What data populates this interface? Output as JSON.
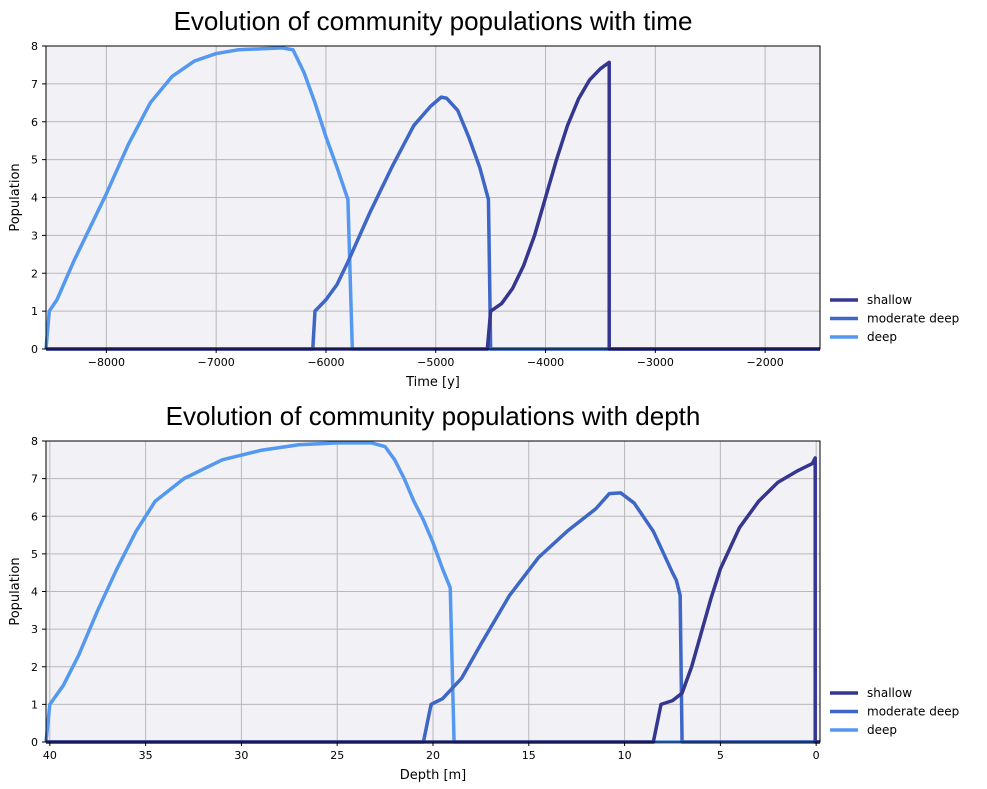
{
  "chart_data": [
    {
      "type": "line",
      "title": "Evolution of community populations with time",
      "xlabel": "Time [y]",
      "ylabel": "Population",
      "xlim": [
        -8550,
        -1500
      ],
      "ylim": [
        0,
        8
      ],
      "xticks": [
        -8000,
        -7000,
        -6000,
        -5000,
        -4000,
        -3000,
        -2000
      ],
      "xtick_labels": [
        "−8000",
        "−7000",
        "−6000",
        "−5000",
        "−4000",
        "−3000",
        "−2000"
      ],
      "yticks": [
        0,
        1,
        2,
        3,
        4,
        5,
        6,
        7,
        8
      ],
      "ytick_labels": [
        "0",
        "1",
        "2",
        "3",
        "4",
        "5",
        "6",
        "7",
        "8"
      ],
      "grid": true,
      "legend": "right",
      "series": [
        {
          "name": "shallow",
          "color": "#35368f",
          "points": [
            [
              -8550,
              0
            ],
            [
              -4530,
              0
            ],
            [
              -4500,
              1
            ],
            [
              -4400,
              1.2
            ],
            [
              -4300,
              1.6
            ],
            [
              -4200,
              2.2
            ],
            [
              -4100,
              3.0
            ],
            [
              -4000,
              4.0
            ],
            [
              -3900,
              5.0
            ],
            [
              -3800,
              5.9
            ],
            [
              -3700,
              6.6
            ],
            [
              -3600,
              7.1
            ],
            [
              -3500,
              7.4
            ],
            [
              -3420,
              7.57
            ],
            [
              -3420,
              0
            ],
            [
              -1500,
              0
            ]
          ]
        },
        {
          "name": "moderate deep",
          "color": "#3e66c6",
          "points": [
            [
              -8550,
              0
            ],
            [
              -6120,
              0
            ],
            [
              -6100,
              1
            ],
            [
              -6000,
              1.3
            ],
            [
              -5900,
              1.7
            ],
            [
              -5800,
              2.3
            ],
            [
              -5600,
              3.6
            ],
            [
              -5400,
              4.8
            ],
            [
              -5200,
              5.9
            ],
            [
              -5050,
              6.4
            ],
            [
              -4950,
              6.65
            ],
            [
              -4900,
              6.62
            ],
            [
              -4800,
              6.3
            ],
            [
              -4700,
              5.6
            ],
            [
              -4600,
              4.8
            ],
            [
              -4520,
              3.95
            ],
            [
              -4500,
              0
            ],
            [
              -1500,
              0
            ]
          ]
        },
        {
          "name": "deep",
          "color": "#5598ef",
          "points": [
            [
              -8550,
              0
            ],
            [
              -8520,
              1
            ],
            [
              -8450,
              1.3
            ],
            [
              -8300,
              2.3
            ],
            [
              -8100,
              3.5
            ],
            [
              -8000,
              4.1
            ],
            [
              -7800,
              5.4
            ],
            [
              -7600,
              6.5
            ],
            [
              -7400,
              7.2
            ],
            [
              -7200,
              7.6
            ],
            [
              -7000,
              7.8
            ],
            [
              -6800,
              7.9
            ],
            [
              -6400,
              7.95
            ],
            [
              -6300,
              7.9
            ],
            [
              -6200,
              7.3
            ],
            [
              -6100,
              6.5
            ],
            [
              -6000,
              5.6
            ],
            [
              -5900,
              4.8
            ],
            [
              -5800,
              3.95
            ],
            [
              -5760,
              0
            ],
            [
              -1500,
              0
            ]
          ]
        }
      ]
    },
    {
      "type": "line",
      "title": "Evolution of community populations with depth",
      "xlabel": "Depth [m]",
      "ylabel": "Population",
      "xlim": [
        40.2,
        -0.2
      ],
      "ylim": [
        0,
        8
      ],
      "xticks": [
        40,
        35,
        30,
        25,
        20,
        15,
        10,
        5,
        0
      ],
      "xtick_labels": [
        "40",
        "35",
        "30",
        "25",
        "20",
        "15",
        "10",
        "5",
        "0"
      ],
      "yticks": [
        0,
        1,
        2,
        3,
        4,
        5,
        6,
        7,
        8
      ],
      "ytick_labels": [
        "0",
        "1",
        "2",
        "3",
        "4",
        "5",
        "6",
        "7",
        "8"
      ],
      "grid": true,
      "legend": "right",
      "series": [
        {
          "name": "shallow",
          "color": "#35368f",
          "points": [
            [
              40.2,
              0
            ],
            [
              8.5,
              0
            ],
            [
              8.1,
              1
            ],
            [
              7.5,
              1.1
            ],
            [
              7.0,
              1.3
            ],
            [
              6.5,
              2.0
            ],
            [
              6.0,
              2.9
            ],
            [
              5.5,
              3.8
            ],
            [
              5.0,
              4.6
            ],
            [
              4.0,
              5.7
            ],
            [
              3.0,
              6.4
            ],
            [
              2.0,
              6.9
            ],
            [
              1.0,
              7.2
            ],
            [
              0.2,
              7.4
            ],
            [
              0.05,
              7.55
            ],
            [
              0.05,
              0
            ],
            [
              -0.2,
              0
            ]
          ]
        },
        {
          "name": "moderate deep",
          "color": "#3e66c6",
          "points": [
            [
              40.2,
              0
            ],
            [
              20.5,
              0
            ],
            [
              20.1,
              1
            ],
            [
              19.5,
              1.15
            ],
            [
              18.5,
              1.7
            ],
            [
              17.5,
              2.6
            ],
            [
              16,
              3.9
            ],
            [
              14.5,
              4.9
            ],
            [
              13,
              5.6
            ],
            [
              11.5,
              6.2
            ],
            [
              10.8,
              6.6
            ],
            [
              10.2,
              6.62
            ],
            [
              9.5,
              6.35
            ],
            [
              8.5,
              5.6
            ],
            [
              7.5,
              4.5
            ],
            [
              7.3,
              4.3
            ],
            [
              7.1,
              3.9
            ],
            [
              7.0,
              0
            ],
            [
              -0.2,
              0
            ]
          ]
        },
        {
          "name": "deep",
          "color": "#5598ef",
          "points": [
            [
              40.2,
              0
            ],
            [
              40.0,
              1
            ],
            [
              39.3,
              1.5
            ],
            [
              38.5,
              2.3
            ],
            [
              37.5,
              3.5
            ],
            [
              36.5,
              4.6
            ],
            [
              35.5,
              5.6
            ],
            [
              34.5,
              6.4
            ],
            [
              33,
              7.0
            ],
            [
              31,
              7.5
            ],
            [
              29,
              7.75
            ],
            [
              27,
              7.9
            ],
            [
              25,
              7.95
            ],
            [
              23.2,
              7.95
            ],
            [
              22.5,
              7.85
            ],
            [
              22,
              7.5
            ],
            [
              21.5,
              7.0
            ],
            [
              21,
              6.4
            ],
            [
              20.5,
              5.9
            ],
            [
              20,
              5.3
            ],
            [
              19.5,
              4.6
            ],
            [
              19.1,
              4.1
            ],
            [
              18.9,
              0
            ],
            [
              -0.2,
              0
            ]
          ]
        }
      ]
    }
  ]
}
